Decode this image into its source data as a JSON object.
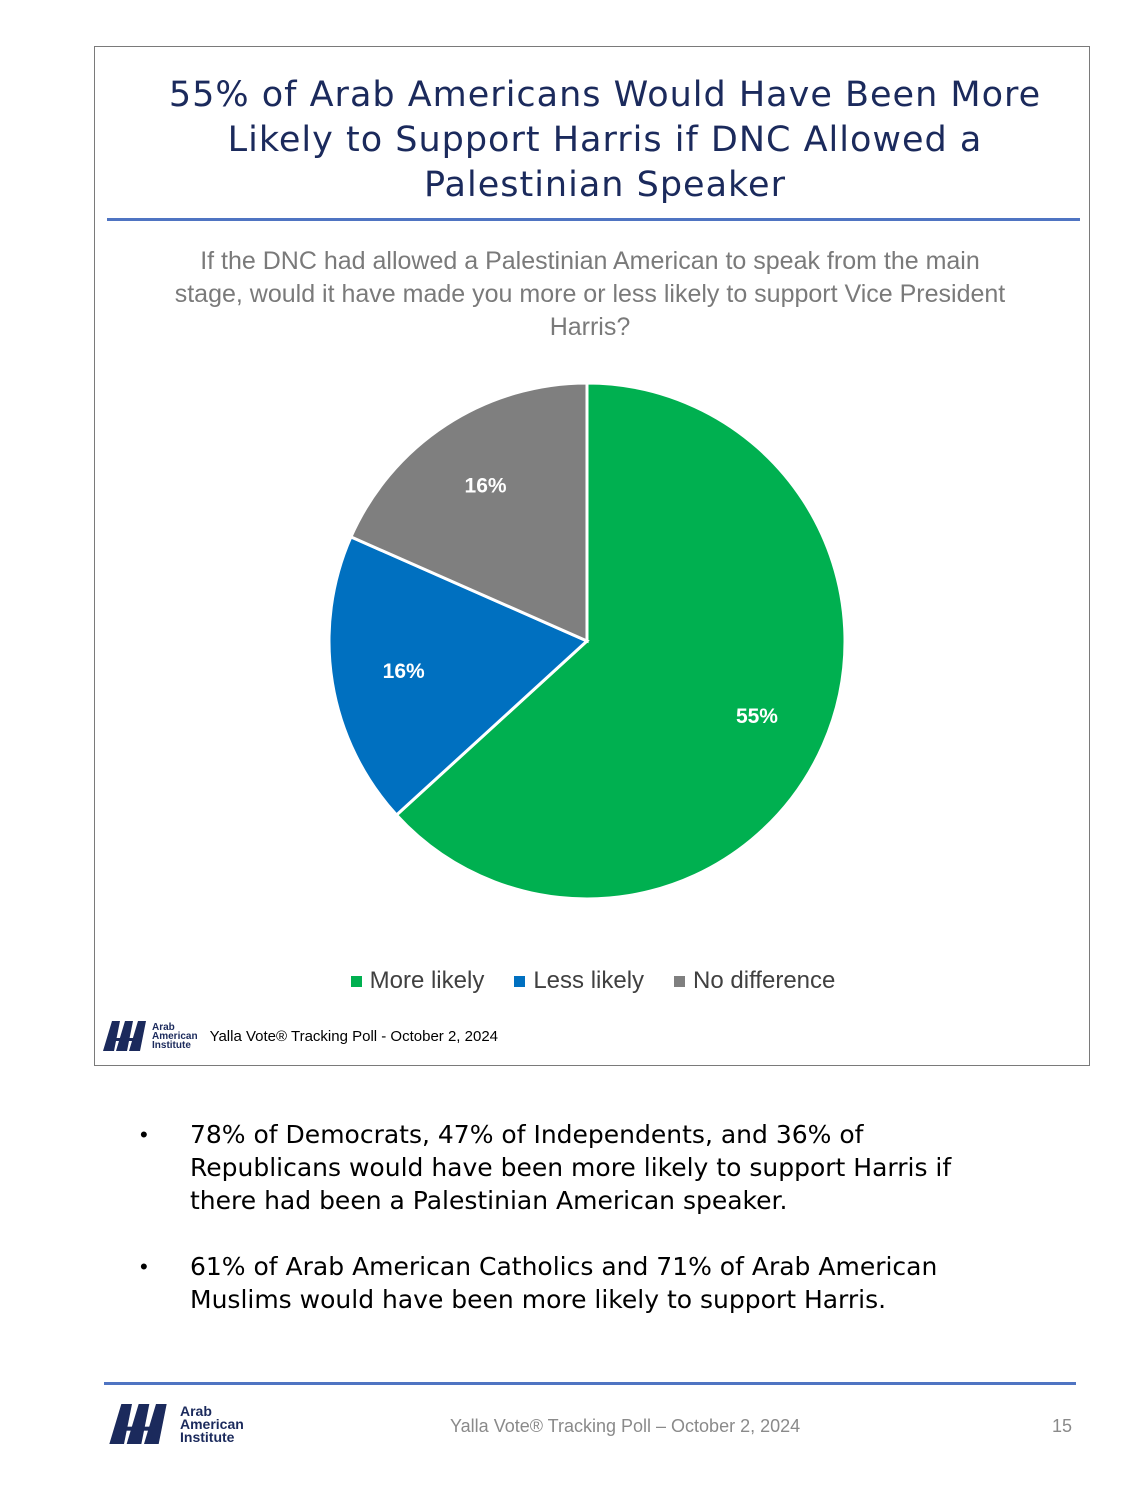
{
  "slide": {
    "title": "55% of Arab Americans Would Have Been More Likely to Support Harris if DNC Allowed a Palestinian Speaker",
    "question": "If the DNC had allowed a Palestinian American to speak from the main stage, would it have made you more or less likely to support Vice President Harris?",
    "source": "Yalla Vote® Tracking Poll - October 2, 2024",
    "logo_text": [
      "Arab",
      "American",
      "Institute"
    ],
    "accent_color": "#1b2a5c",
    "rule_color": "#4f74c2"
  },
  "chart_data": {
    "type": "pie",
    "categories": [
      "More likely",
      "Less likely",
      "No difference"
    ],
    "values": [
      55,
      16,
      16
    ],
    "data_labels": [
      "55%",
      "16%",
      "16%"
    ],
    "colors": [
      "#00b050",
      "#0070c0",
      "#7f7f7f"
    ],
    "legend_position": "bottom"
  },
  "bullets": [
    "78% of Democrats, 47% of Independents, and 36% of Republicans would have been more likely to support Harris if there had been a Palestinian American speaker.",
    "61% of Arab American Catholics and 71% of Arab American Muslims would have been more likely to support Harris."
  ],
  "footer": {
    "source": "Yalla Vote® Tracking Poll – October 2, 2024",
    "page_number": "15"
  }
}
